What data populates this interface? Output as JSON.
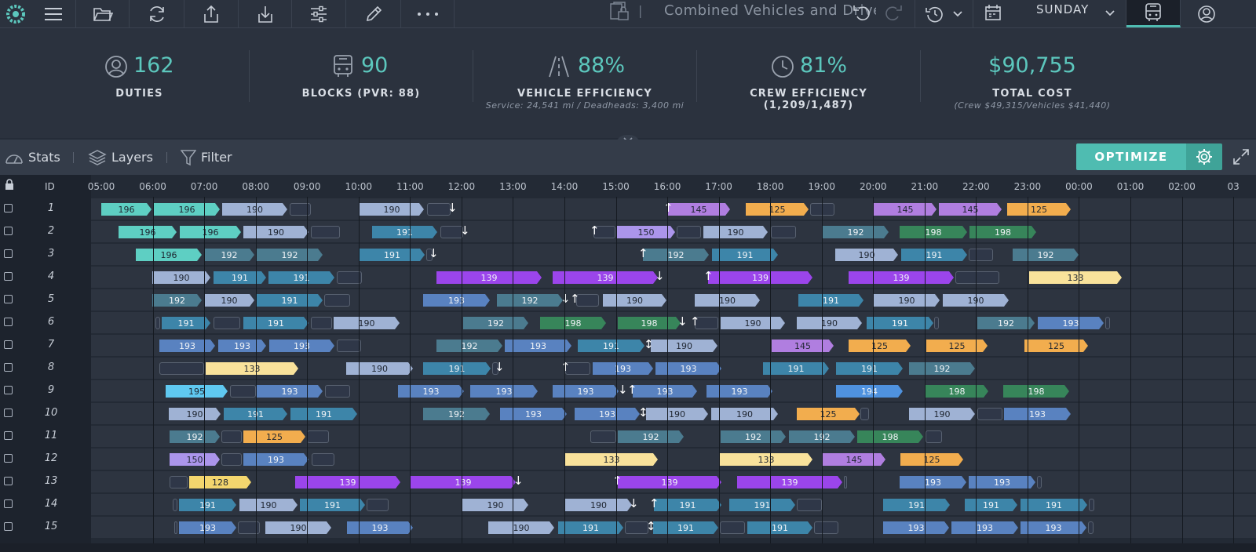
{
  "toolbar": {
    "title": "Combined Vehicles and Drivers",
    "day": "SUNDAY"
  },
  "stats": {
    "duties": {
      "value": "162",
      "label": "DUTIES"
    },
    "blocks": {
      "value": "90",
      "label": "BLOCKS (PVR: 88)"
    },
    "vehicle": {
      "value": "88%",
      "label": "VEHICLE EFFICIENCY",
      "sub": "Service: 24,541 mi / Deadheads: 3,400 mi"
    },
    "crew": {
      "value": "81%",
      "label": "CREW EFFICIENCY (1,209/1,487)"
    },
    "cost": {
      "value": "$90,755",
      "label": "TOTAL COST",
      "sub": "(Crew $49,315/Vehicles $41,440)"
    }
  },
  "controls": {
    "stats": "Stats",
    "layers": "Layers",
    "filter": "Filter",
    "optimize": "OPTIMIZE"
  },
  "grid": {
    "id_header": "ID",
    "hours": [
      "05:00",
      "06:00",
      "07:00",
      "08:00",
      "09:00",
      "10:00",
      "11:00",
      "12:00",
      "13:00",
      "14:00",
      "15:00",
      "16:00",
      "17:00",
      "18:00",
      "19:00",
      "20:00",
      "21:00",
      "22:00",
      "23:00",
      "00:00",
      "01:00",
      "02:00",
      "03"
    ]
  },
  "colors": {
    "196": "#5ecfc3",
    "190": "#9fb2d4",
    "191": "#3d85a9",
    "192": "#4b7b8f",
    "193": "#5982c0",
    "139": "#9b45eb",
    "145": "#b07ee0",
    "150": "#ab95eb",
    "125": "#f2ad4e",
    "133": "#f9e29b",
    "128": "#f3d66e",
    "195": "#5fc8f0",
    "194": "#4f92df",
    "198": "#37855a",
    "dh": "#2f3748"
  },
  "rows": [
    {
      "id": "1",
      "blocks": [
        [
          129,
          193,
          "196"
        ],
        [
          196,
          280,
          "196"
        ],
        [
          283,
          366,
          "190"
        ],
        [
          369,
          396,
          "dh"
        ],
        [
          458,
          540,
          "190"
        ],
        [
          544,
          574,
          "dh"
        ],
        [
          850,
          930,
          "145"
        ],
        [
          950,
          1030,
          "125"
        ],
        [
          1032,
          1063,
          "dh"
        ],
        [
          1113,
          1193,
          "145"
        ],
        [
          1196,
          1276,
          "145"
        ],
        [
          1283,
          1364,
          "125"
        ]
      ],
      "marks": [
        [
          570,
          "↓"
        ],
        [
          845,
          "↑"
        ]
      ]
    },
    {
      "id": "2",
      "blocks": [
        [
          151,
          225,
          "196"
        ],
        [
          229,
          307,
          "196"
        ],
        [
          310,
          393,
          "190"
        ],
        [
          396,
          433,
          "dh"
        ],
        [
          474,
          557,
          "191"
        ],
        [
          561,
          590,
          "dh"
        ],
        [
          756,
          784,
          "dh"
        ],
        [
          786,
          860,
          "150"
        ],
        [
          862,
          893,
          "dh"
        ],
        [
          896,
          978,
          "190"
        ],
        [
          982,
          1014,
          "dh"
        ],
        [
          1048,
          1132,
          "192"
        ],
        [
          1146,
          1232,
          "198"
        ],
        [
          1235,
          1320,
          "198"
        ]
      ],
      "marks": [
        [
          586,
          "↓"
        ],
        [
          751,
          "↑"
        ]
      ]
    },
    {
      "id": "3",
      "blocks": [
        [
          173,
          257,
          "196"
        ],
        [
          260,
          324,
          "192"
        ],
        [
          327,
          411,
          "192"
        ],
        [
          458,
          541,
          "191"
        ],
        [
          543,
          551,
          "dh"
        ],
        [
          819,
          903,
          "192"
        ],
        [
          907,
          991,
          "191"
        ],
        [
          1064,
          1144,
          "190"
        ],
        [
          1148,
          1232,
          "191"
        ],
        [
          1234,
          1265,
          "dh"
        ],
        [
          1290,
          1374,
          "192"
        ]
      ],
      "marks": [
        [
          546,
          "↓"
        ],
        [
          813,
          "↑"
        ]
      ]
    },
    {
      "id": "4",
      "blocks": [
        [
          194,
          268,
          "190"
        ],
        [
          272,
          339,
          "191"
        ],
        [
          342,
          426,
          "191"
        ],
        [
          429,
          461,
          "dh"
        ],
        [
          556,
          690,
          "139"
        ],
        [
          704,
          838,
          "139"
        ],
        [
          902,
          1035,
          "139"
        ],
        [
          1081,
          1215,
          "139"
        ],
        [
          1217,
          1273,
          "dh"
        ],
        [
          1311,
          1429,
          "133"
        ]
      ],
      "marks": [
        [
          834,
          "↓"
        ],
        [
          896,
          "↑"
        ]
      ]
    },
    {
      "id": "5",
      "blocks": [
        [
          194,
          257,
          "192"
        ],
        [
          260,
          324,
          "190"
        ],
        [
          327,
          411,
          "191"
        ],
        [
          413,
          446,
          "dh"
        ],
        [
          539,
          624,
          "193"
        ],
        [
          633,
          717,
          "192"
        ],
        [
          734,
          763,
          "dh"
        ],
        [
          768,
          849,
          "190"
        ],
        [
          885,
          968,
          "190"
        ],
        [
          1017,
          1100,
          "191"
        ],
        [
          1113,
          1197,
          "190"
        ],
        [
          1201,
          1285,
          "190"
        ]
      ],
      "marks": [
        [
          714,
          "↓"
        ],
        [
          726,
          "↑"
        ]
      ]
    },
    {
      "id": "6",
      "blocks": [
        [
          198,
          204,
          "dh"
        ],
        [
          206,
          268,
          "191"
        ],
        [
          272,
          306,
          "dh"
        ],
        [
          310,
          393,
          "191"
        ],
        [
          396,
          423,
          "dh"
        ],
        [
          425,
          509,
          "190"
        ],
        [
          590,
          673,
          "192"
        ],
        [
          688,
          772,
          "198"
        ],
        [
          787,
          867,
          "198"
        ],
        [
          885,
          915,
          "dh"
        ],
        [
          918,
          1000,
          "190"
        ],
        [
          1015,
          1098,
          "190"
        ],
        [
          1104,
          1189,
          "191"
        ],
        [
          1190,
          1196,
          "dh"
        ],
        [
          1245,
          1318,
          "192"
        ],
        [
          1322,
          1406,
          "193"
        ],
        [
          1408,
          1414,
          "dh"
        ]
      ],
      "marks": [
        [
          863,
          "↓"
        ],
        [
          879,
          "↑"
        ]
      ]
    },
    {
      "id": "7",
      "blocks": [
        [
          203,
          274,
          "193"
        ],
        [
          278,
          339,
          "193"
        ],
        [
          343,
          426,
          "193"
        ],
        [
          429,
          460,
          "dh"
        ],
        [
          556,
          640,
          "192"
        ],
        [
          643,
          728,
          "193"
        ],
        [
          736,
          821,
          "191"
        ],
        [
          829,
          914,
          "190"
        ],
        [
          983,
          1062,
          "145"
        ],
        [
          1081,
          1160,
          "125"
        ],
        [
          1180,
          1258,
          "125"
        ],
        [
          1305,
          1386,
          "125"
        ]
      ],
      "marks": [
        [
          820,
          "↕"
        ]
      ]
    },
    {
      "id": "8",
      "blocks": [
        [
          203,
          260,
          "dh"
        ],
        [
          262,
          380,
          "133"
        ],
        [
          441,
          526,
          "190"
        ],
        [
          539,
          625,
          "191"
        ],
        [
          627,
          635,
          "dh"
        ],
        [
          720,
          752,
          "dh"
        ],
        [
          755,
          832,
          "193"
        ],
        [
          835,
          919,
          "193"
        ],
        [
          972,
          1056,
          "191"
        ],
        [
          1065,
          1150,
          "191"
        ],
        [
          1158,
          1242,
          "192"
        ]
      ],
      "marks": [
        [
          630,
          "↓"
        ],
        [
          714,
          "↑"
        ]
      ]
    },
    {
      "id": "9",
      "blocks": [
        [
          211,
          290,
          "195"
        ],
        [
          293,
          326,
          "dh"
        ],
        [
          327,
          411,
          "193"
        ],
        [
          414,
          446,
          "dh"
        ],
        [
          507,
          591,
          "193"
        ],
        [
          599,
          685,
          "193"
        ],
        [
          704,
          788,
          "193"
        ],
        [
          806,
          888,
          "193"
        ],
        [
          900,
          984,
          "193"
        ],
        [
          1065,
          1150,
          "194"
        ],
        [
          1179,
          1259,
          "198"
        ],
        [
          1278,
          1362,
          "198"
        ]
      ],
      "marks": [
        [
          787,
          "↓"
        ],
        [
          799,
          "↑"
        ]
      ]
    },
    {
      "id": "10",
      "blocks": [
        [
          215,
          281,
          "190"
        ],
        [
          285,
          366,
          "191"
        ],
        [
          370,
          455,
          "191"
        ],
        [
          539,
          624,
          "192"
        ],
        [
          637,
          722,
          "193"
        ],
        [
          732,
          815,
          "193"
        ],
        [
          823,
          902,
          "190"
        ],
        [
          906,
          991,
          "190"
        ],
        [
          1015,
          1095,
          "125"
        ],
        [
          1096,
          1107,
          "dh"
        ],
        [
          1158,
          1242,
          "190"
        ],
        [
          1245,
          1277,
          "dh"
        ],
        [
          1279,
          1364,
          "193"
        ]
      ],
      "marks": [
        [
          813,
          "↕"
        ]
      ]
    },
    {
      "id": "11",
      "blocks": [
        [
          216,
          280,
          "192"
        ],
        [
          282,
          308,
          "dh"
        ],
        [
          310,
          389,
          "125"
        ],
        [
          391,
          419,
          "dh"
        ],
        [
          752,
          785,
          "dh"
        ],
        [
          787,
          871,
          "192"
        ],
        [
          918,
          1001,
          "192"
        ],
        [
          1005,
          1089,
          "192"
        ],
        [
          1092,
          1176,
          "198"
        ],
        [
          1179,
          1200,
          "dh"
        ]
      ],
      "marks": []
    },
    {
      "id": "12",
      "blocks": [
        [
          216,
          280,
          "150"
        ],
        [
          282,
          308,
          "dh"
        ],
        [
          310,
          393,
          "193"
        ],
        [
          397,
          426,
          "dh"
        ],
        [
          720,
          838,
          "133"
        ],
        [
          917,
          1035,
          "133"
        ],
        [
          1048,
          1128,
          "145"
        ],
        [
          1147,
          1227,
          "125"
        ]
      ],
      "marks": []
    },
    {
      "id": "13",
      "blocks": [
        [
          216,
          239,
          "dh"
        ],
        [
          241,
          320,
          "128"
        ],
        [
          376,
          510,
          "139"
        ],
        [
          523,
          657,
          "139"
        ],
        [
          787,
          919,
          "139"
        ],
        [
          939,
          1073,
          "139"
        ],
        [
          1075,
          1079,
          "dh"
        ],
        [
          1146,
          1231,
          "193"
        ],
        [
          1234,
          1319,
          "193"
        ],
        [
          1321,
          1327,
          "dh"
        ]
      ],
      "marks": [
        [
          654,
          "↓"
        ],
        [
          780,
          "↑"
        ]
      ]
    },
    {
      "id": "14",
      "blocks": [
        [
          220,
          226,
          "dh"
        ],
        [
          228,
          301,
          "191"
        ],
        [
          305,
          379,
          "190"
        ],
        [
          382,
          465,
          "191"
        ],
        [
          467,
          495,
          "dh"
        ],
        [
          589,
          673,
          "190"
        ],
        [
          720,
          805,
          "190"
        ],
        [
          833,
          919,
          "191"
        ],
        [
          929,
          1013,
          "191"
        ],
        [
          1015,
          1047,
          "dh"
        ],
        [
          1125,
          1210,
          "191"
        ],
        [
          1229,
          1296,
          "191"
        ],
        [
          1300,
          1385,
          "191"
        ],
        [
          1387,
          1394,
          "dh"
        ]
      ],
      "marks": [
        [
          801,
          "↓"
        ],
        [
          827,
          "↑"
        ]
      ]
    },
    {
      "id": "15",
      "blocks": [
        [
          222,
          226,
          "dh"
        ],
        [
          228,
          301,
          "193"
        ],
        [
          303,
          331,
          "dh"
        ],
        [
          338,
          422,
          "190"
        ],
        [
          442,
          526,
          "193"
        ],
        [
          622,
          706,
          "190"
        ],
        [
          711,
          794,
          "191"
        ],
        [
          796,
          826,
          "dh"
        ],
        [
          832,
          915,
          "191"
        ],
        [
          917,
          949,
          "dh"
        ],
        [
          952,
          1035,
          "191"
        ],
        [
          1037,
          1068,
          "dh"
        ],
        [
          1125,
          1209,
          "193"
        ],
        [
          1212,
          1297,
          "193"
        ],
        [
          1300,
          1384,
          "193"
        ],
        [
          1386,
          1393,
          "dh"
        ]
      ],
      "marks": [
        [
          823,
          "↕"
        ]
      ]
    }
  ]
}
